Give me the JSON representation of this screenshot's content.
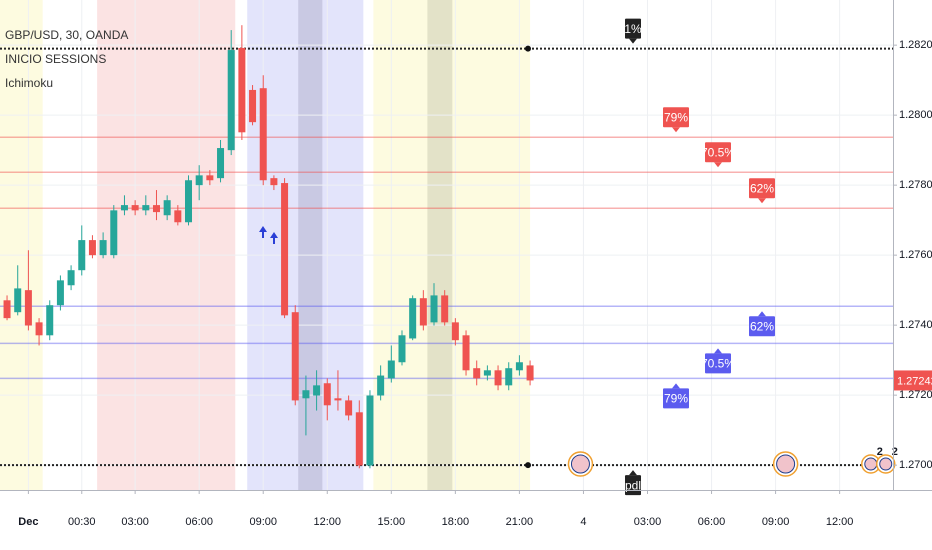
{
  "chart_data": {
    "type": "candlestick",
    "title": "GBP/USD, 30, OANDA",
    "indicators": [
      "INICIO SESSIONS",
      "Ichimoku"
    ],
    "up_color": "#26a69a",
    "down_color": "#ef5350",
    "grid": true,
    "xlim": [
      -3.33,
      38.5
    ],
    "ylim": [
      1.26929,
      1.28329
    ],
    "xticks": [
      {
        "value": -2,
        "label": "Dec"
      },
      {
        "value": 0.5,
        "label": "00:30"
      },
      {
        "value": 3,
        "label": "03:00"
      },
      {
        "value": 6,
        "label": "06:00"
      },
      {
        "value": 9,
        "label": "09:00"
      },
      {
        "value": 12,
        "label": "12:00"
      },
      {
        "value": 15,
        "label": "15:00"
      },
      {
        "value": 18,
        "label": "18:00"
      },
      {
        "value": 21,
        "label": "21:00"
      },
      {
        "value": 24,
        "label": "4"
      },
      {
        "value": 27,
        "label": "03:00"
      },
      {
        "value": 30,
        "label": "06:00"
      },
      {
        "value": 33,
        "label": "09:00"
      },
      {
        "value": 36,
        "label": "12:00"
      }
    ],
    "yticks": [
      {
        "value": 1.282,
        "label": "1.28200"
      },
      {
        "value": 1.28,
        "label": "1.28000"
      },
      {
        "value": 1.278,
        "label": "1.27800"
      },
      {
        "value": 1.276,
        "label": "1.27600"
      },
      {
        "value": 1.274,
        "label": "1.27400"
      },
      {
        "value": 1.272,
        "label": "1.27200"
      },
      {
        "value": 1.27,
        "label": "1.27000"
      }
    ],
    "last_price": {
      "value": 1.27242,
      "label": "1.27242"
    },
    "sessions": [
      {
        "start": -3.33,
        "end": -1.33,
        "color": "#fdfbe0"
      },
      {
        "start": 1.22,
        "end": 7.69,
        "color": "#fbe3e3"
      },
      {
        "start": 8.25,
        "end": 13.69,
        "color": "#e3e4fb"
      },
      {
        "start": 10.64,
        "end": 11.77,
        "color": "#c9c9e3"
      },
      {
        "start": 14.16,
        "end": 21.5,
        "color": "#fdfbe0"
      },
      {
        "start": 16.69,
        "end": 17.86,
        "color": "#e3e2c8"
      }
    ],
    "levels": [
      {
        "value": 1.2819,
        "label": "1%",
        "color": "#222222",
        "marker": "down"
      },
      {
        "value": 1.27937,
        "label": "79%",
        "color": "#ef5350",
        "marker": "down"
      },
      {
        "value": 1.27837,
        "label": "70.5%",
        "color": "#ef5350",
        "marker": "down"
      },
      {
        "value": 1.27734,
        "label": "62%",
        "color": "#ef5350",
        "marker": "down"
      },
      {
        "value": 1.27454,
        "label": "62%",
        "color": "#5b5bef",
        "marker": "up"
      },
      {
        "value": 1.27348,
        "label": "70.5%",
        "color": "#5b5bef",
        "marker": "up"
      },
      {
        "value": 1.27248,
        "label": "79%",
        "color": "#5b5bef",
        "marker": "up"
      },
      {
        "value": 1.27,
        "label": "pdl",
        "color": "#222222",
        "marker": "up"
      }
    ],
    "events": [
      {
        "x": 23.86
      },
      {
        "x": 33.47
      },
      {
        "x": 37.46,
        "count": 2
      },
      {
        "x": 38.16,
        "count": 2
      }
    ],
    "x": [
      -3,
      -2.5,
      -2,
      -1.5,
      -1,
      -0.5,
      0,
      0.5,
      1,
      1.5,
      2,
      2.5,
      3,
      3.5,
      4,
      4.5,
      5,
      5.5,
      6,
      6.5,
      7,
      7.5,
      8,
      8.5,
      9,
      9.5,
      10,
      10.5,
      11,
      11.5,
      12,
      12.5,
      13,
      13.5,
      14,
      14.5,
      15,
      15.5,
      16,
      16.5,
      17,
      17.5,
      18,
      18.5,
      19,
      19.5,
      20,
      20.5,
      21,
      21.5
    ],
    "open": [
      1.27471,
      1.27437,
      1.275,
      1.27408,
      1.27371,
      1.27457,
      1.27514,
      1.27557,
      1.27643,
      1.276,
      1.276,
      1.27728,
      1.27743,
      1.27728,
      1.27743,
      1.27714,
      1.27728,
      1.27694,
      1.278,
      1.27828,
      1.2782,
      1.279,
      1.28192,
      1.28072,
      1.28077,
      1.2782,
      1.27806,
      1.27437,
      1.27191,
      1.27199,
      1.27234,
      1.27191,
      1.27185,
      1.27151,
      1.26999,
      1.27199,
      1.27248,
      1.27294,
      1.27362,
      1.27477,
      1.27408,
      1.27485,
      1.27408,
      1.27371,
      1.27277,
      1.27256,
      1.27271,
      1.27228,
      1.27271,
      1.27285
    ],
    "high": [
      1.27485,
      1.27571,
      1.27614,
      1.2742,
      1.27471,
      1.27542,
      1.27571,
      1.27685,
      1.27657,
      1.27665,
      1.27743,
      1.27771,
      1.27757,
      1.27771,
      1.27786,
      1.27771,
      1.27743,
      1.27828,
      1.27857,
      1.27843,
      1.27929,
      1.28243,
      1.28257,
      1.28086,
      1.28114,
      1.27828,
      1.2782,
      1.27457,
      1.27256,
      1.27271,
      1.27248,
      1.27271,
      1.27199,
      1.27185,
      1.27214,
      1.27285,
      1.27342,
      1.27385,
      1.27485,
      1.275,
      1.2752,
      1.275,
      1.2742,
      1.27385,
      1.27299,
      1.27285,
      1.27285,
      1.27294,
      1.27314,
      1.27299
    ],
    "low": [
      1.27414,
      1.27428,
      1.27385,
      1.27342,
      1.27357,
      1.27442,
      1.275,
      1.27542,
      1.27591,
      1.27591,
      1.27591,
      1.27714,
      1.27714,
      1.27714,
      1.277,
      1.277,
      1.27685,
      1.27685,
      1.27757,
      1.278,
      1.27808,
      1.27886,
      1.27929,
      1.27971,
      1.278,
      1.27786,
      1.2742,
      1.27171,
      1.27085,
      1.27156,
      1.27128,
      1.27156,
      1.27128,
      1.26991,
      1.26991,
      1.27185,
      1.27236,
      1.27285,
      1.27357,
      1.27385,
      1.27399,
      1.27399,
      1.27342,
      1.27256,
      1.27228,
      1.27242,
      1.27214,
      1.27214,
      1.27256,
      1.27228
    ],
    "close": [
      1.2742,
      1.27505,
      1.27399,
      1.27371,
      1.27457,
      1.27528,
      1.27557,
      1.27643,
      1.276,
      1.27643,
      1.27728,
      1.27743,
      1.27728,
      1.27743,
      1.27723,
      1.27757,
      1.27694,
      1.27814,
      1.27828,
      1.27814,
      1.27906,
      1.28186,
      1.27951,
      1.2798,
      1.27814,
      1.278,
      1.27428,
      1.27185,
      1.27214,
      1.27228,
      1.27171,
      1.27185,
      1.27142,
      1.26999,
      1.27199,
      1.27256,
      1.27299,
      1.27371,
      1.27477,
      1.27399,
      1.27485,
      1.27408,
      1.27357,
      1.27271,
      1.27248,
      1.27271,
      1.27228,
      1.27277,
      1.27294,
      1.27242
    ]
  }
}
